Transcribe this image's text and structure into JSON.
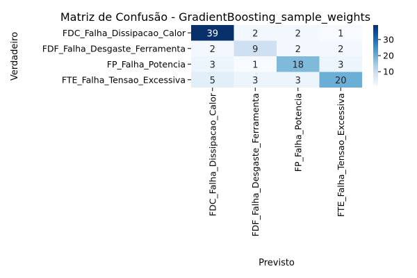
{
  "chart_data": {
    "type": "heatmap",
    "title": "Matriz de Confusão - GradientBoosting_sample_weights",
    "xlabel": "Previsto",
    "ylabel": "Verdadeiro",
    "row_labels": [
      "FDC_Falha_Dissipacao_Calor",
      "FDF_Falha_Desgaste_Ferramenta",
      "FP_Falha_Potencia",
      "FTE_Falha_Tensao_Excessiva"
    ],
    "col_labels": [
      "FDC_Falha_Dissipacao_Calor",
      "FDF_Falha_Desgaste_Ferramenta",
      "FP_Falha_Potencia",
      "FTE_Falha_Tensao_Excessiva"
    ],
    "values": [
      [
        39,
        2,
        2,
        1
      ],
      [
        2,
        9,
        2,
        2
      ],
      [
        3,
        1,
        18,
        3
      ],
      [
        5,
        3,
        3,
        20
      ]
    ],
    "colormap": "Blues",
    "vmin": 1,
    "vmax": 39,
    "colorbar_ticks": [
      10,
      20,
      30
    ]
  }
}
